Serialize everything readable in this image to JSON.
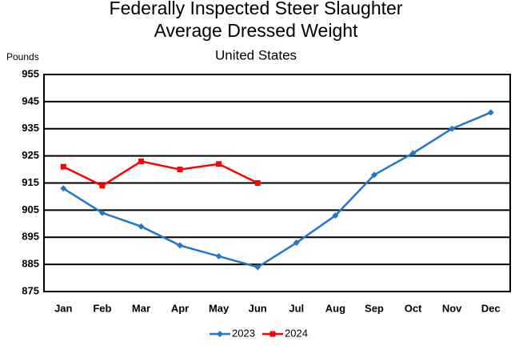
{
  "chart_data": {
    "type": "line",
    "title": [
      "Federally Inspected Steer Slaughter",
      "Average Dressed Weight"
    ],
    "subtitle": "United States",
    "y_label": "Pounds",
    "categories": [
      "Jan",
      "Feb",
      "Mar",
      "Apr",
      "May",
      "Jun",
      "Jul",
      "Aug",
      "Sep",
      "Oct",
      "Nov",
      "Dec"
    ],
    "series": [
      {
        "name": "2023",
        "color": "#1f78c8",
        "marker": "diamond",
        "values": [
          913,
          904,
          899,
          892,
          888,
          884,
          893,
          903,
          918,
          926,
          935,
          941
        ]
      },
      {
        "name": "2024",
        "color": "#ff0000",
        "marker": "square",
        "values": [
          921,
          914,
          923,
          920,
          922,
          915,
          null,
          null,
          null,
          null,
          null,
          null
        ]
      }
    ],
    "ylim": [
      875,
      955
    ],
    "yticks": [
      875,
      885,
      895,
      905,
      915,
      925,
      935,
      945,
      955
    ],
    "grid": true,
    "legend": "bottom"
  }
}
